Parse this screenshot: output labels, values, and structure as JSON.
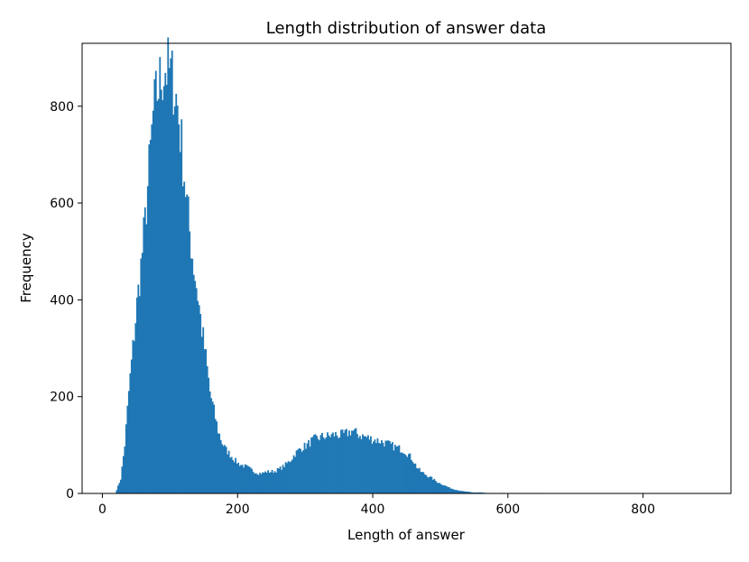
{
  "chart_data": {
    "type": "bar",
    "title": "Length distribution of answer data",
    "xlabel": "Length of answer",
    "ylabel": "Frequency",
    "xlim": [
      -30,
      930
    ],
    "ylim": [
      0,
      930
    ],
    "x_ticks": [
      0,
      200,
      400,
      600,
      800
    ],
    "y_ticks": [
      0,
      200,
      400,
      600,
      800
    ],
    "grid": false,
    "bar_color": "#1f77b4",
    "bin_width": 2,
    "series": [
      {
        "x": [
          18,
          26,
          32,
          38,
          44,
          50,
          56,
          62,
          68,
          74,
          80,
          86,
          92,
          98,
          104,
          110,
          116,
          122,
          128,
          134,
          140,
          146,
          152,
          158,
          164,
          170,
          176,
          182,
          188,
          194,
          200,
          206,
          212,
          218,
          224,
          230,
          236,
          242,
          248,
          254,
          260,
          266,
          272,
          278,
          284,
          290,
          296,
          302,
          308,
          314,
          320,
          326,
          332,
          338,
          344,
          350,
          356,
          362,
          368,
          374,
          380,
          386,
          392,
          398,
          404,
          410,
          416,
          422,
          428,
          434,
          440,
          446,
          452,
          458,
          464,
          470,
          476,
          482,
          488,
          494,
          500,
          506,
          512,
          518,
          524,
          530,
          536,
          542,
          548,
          554,
          560,
          566,
          572,
          578,
          584,
          590,
          596,
          602,
          608,
          614,
          620,
          626,
          632,
          638,
          644,
          650,
          656,
          662,
          668,
          674,
          680,
          686,
          692,
          698,
          704,
          710,
          716,
          722,
          728,
          734,
          740,
          746,
          752,
          758,
          764,
          770,
          776,
          782,
          788,
          794,
          800,
          806,
          812,
          818,
          824,
          830,
          836,
          842,
          848,
          854,
          860,
          866,
          872,
          878,
          884
        ],
        "values": [
          0,
          30,
          100,
          210,
          300,
          390,
          470,
          560,
          670,
          780,
          830,
          860,
          880,
          870,
          850,
          800,
          720,
          630,
          540,
          470,
          410,
          340,
          280,
          210,
          170,
          130,
          105,
          90,
          80,
          70,
          62,
          58,
          55,
          50,
          45,
          42,
          42,
          45,
          45,
          46,
          50,
          55,
          62,
          70,
          82,
          90,
          96,
          100,
          108,
          113,
          115,
          118,
          118,
          120,
          122,
          120,
          122,
          125,
          130,
          125,
          120,
          118,
          115,
          112,
          110,
          108,
          105,
          102,
          98,
          95,
          92,
          88,
          80,
          70,
          55,
          45,
          40,
          35,
          30,
          24,
          20,
          16,
          12,
          9,
          7,
          5,
          4,
          3,
          2,
          2,
          2,
          1,
          1,
          1,
          1,
          1,
          1,
          1,
          1,
          1,
          1,
          1,
          1,
          1,
          1,
          1,
          0,
          0,
          0,
          0,
          0,
          0,
          0,
          0,
          0,
          0,
          0,
          0,
          0,
          0,
          0,
          0,
          0,
          0,
          0,
          0,
          0,
          0,
          0,
          0,
          0,
          0,
          0,
          0,
          0,
          0,
          0,
          0,
          0,
          0,
          0,
          0,
          0,
          0,
          0
        ]
      }
    ]
  }
}
